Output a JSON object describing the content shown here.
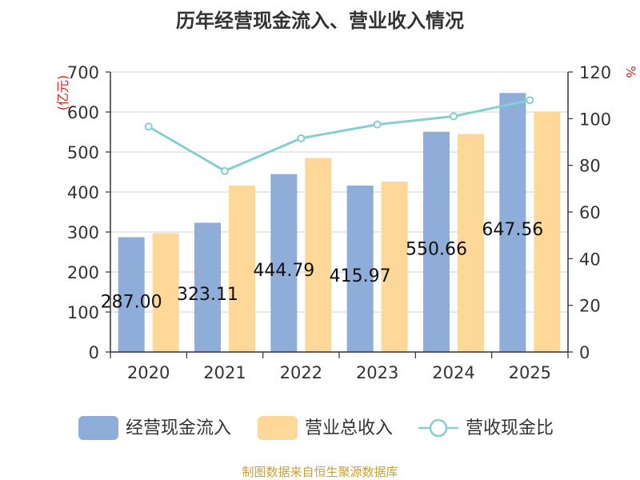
{
  "chart_data": {
    "type": "bar",
    "title": "历年经营现金流入、营业收入情况",
    "categories": [
      "2020",
      "2021",
      "2022",
      "2023",
      "2024",
      "2025"
    ],
    "series": [
      {
        "name": "经营现金流入",
        "type": "bar",
        "color": "#8eadd9",
        "values": [
          287.0,
          323.11,
          444.79,
          415.97,
          550.66,
          647.56
        ],
        "labels": [
          "287.00",
          "323.11",
          "444.79",
          "415.97",
          "550.66",
          "647.56"
        ]
      },
      {
        "name": "营业总收入",
        "type": "bar",
        "color": "#fdd899",
        "values": [
          297,
          416,
          485,
          426,
          545,
          600
        ]
      },
      {
        "name": "营收现金比",
        "type": "line",
        "color": "#86cfd1",
        "values": [
          96.6,
          77.6,
          91.6,
          97.5,
          101.0,
          107.9
        ]
      }
    ],
    "y_left": {
      "label": "(亿元)",
      "min": 0,
      "max": 700,
      "ticks": [
        0,
        100,
        200,
        300,
        400,
        500,
        600,
        700
      ]
    },
    "y_right": {
      "label": "%",
      "min": 0,
      "max": 120,
      "ticks": [
        0,
        20,
        40,
        60,
        80,
        100,
        120
      ]
    },
    "grid": true,
    "legend_position": "bottom",
    "source": "制图数据来自恒生聚源数据库"
  }
}
